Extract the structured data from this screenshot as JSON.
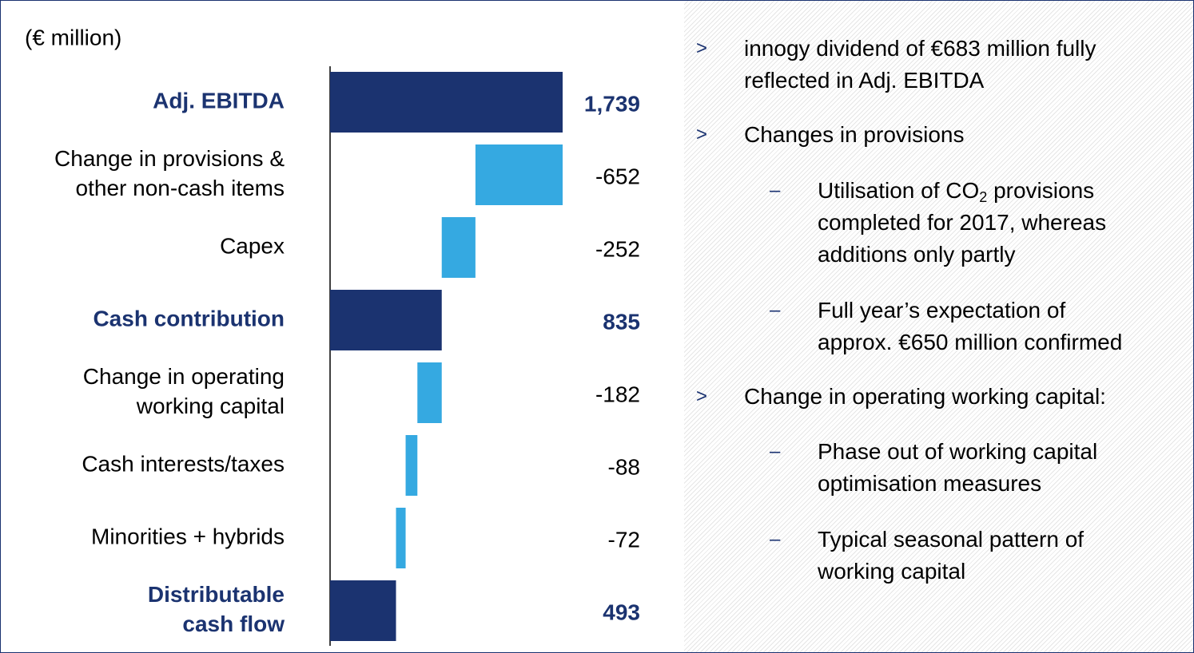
{
  "unit_label": "(€ million)",
  "chart_data": {
    "type": "waterfall",
    "categories": [
      [
        "Adj. EBITDA"
      ],
      [
        "Change in provisions &",
        "other non-cash items"
      ],
      [
        "Capex"
      ],
      [
        "Cash contribution"
      ],
      [
        "Change in operating",
        "working capital"
      ],
      [
        "Cash interests/taxes"
      ],
      [
        "Minorities + hybrids"
      ],
      [
        "Distributable",
        "cash flow"
      ]
    ],
    "values": [
      1739,
      -652,
      -252,
      835,
      -182,
      -88,
      -72,
      493
    ],
    "value_labels": [
      "1,739",
      "-652",
      "-252",
      "835",
      "-182",
      "-88",
      "-72",
      "493"
    ],
    "bar_kinds": [
      "total",
      "delta",
      "delta",
      "total",
      "delta",
      "delta",
      "delta",
      "total"
    ],
    "total_color": "#1b3370",
    "delta_color": "#35a9e1"
  },
  "notes": [
    {
      "lines": [
        "innogy dividend of €683 million fully",
        "reflected in Adj. EBITDA"
      ],
      "subitems": []
    },
    {
      "lines": [
        "Changes in provisions"
      ],
      "subitems": [
        {
          "lines": [
            {
              "text": "Utilisation of CO",
              "sub": "2",
              "tail": " provisions"
            },
            "completed for 2017, whereas",
            "additions only partly"
          ]
        },
        {
          "lines": [
            "Full year’s expectation of",
            "approx. €650 million confirmed"
          ]
        }
      ]
    },
    {
      "lines": [
        "Change in operating working capital:"
      ],
      "subitems": [
        {
          "lines": [
            "Phase out of working capital",
            "optimisation measures"
          ]
        },
        {
          "lines": [
            "Typical seasonal pattern of",
            "working capital"
          ]
        }
      ]
    }
  ]
}
